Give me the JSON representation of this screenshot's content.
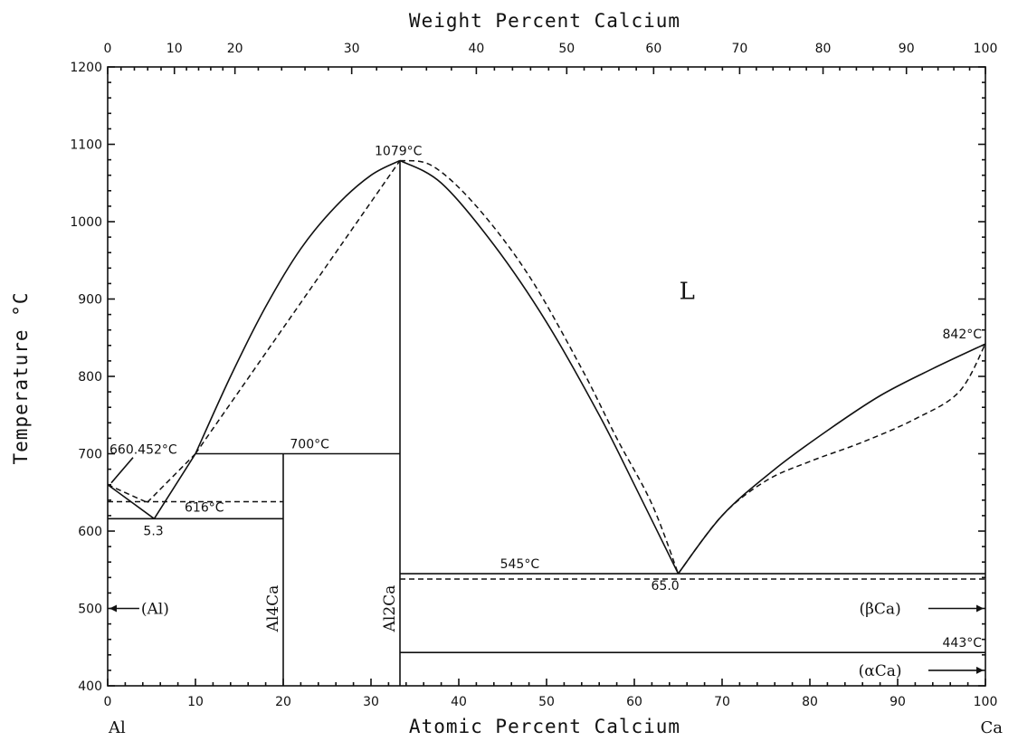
{
  "chart_data": {
    "type": "line",
    "title": "",
    "xlabel": "Atomic Percent Calcium",
    "x2label": "Weight Percent Calcium",
    "ylabel": "Temperature °C",
    "xlim": [
      0,
      100
    ],
    "ylim": [
      400,
      1200
    ],
    "x_ticks": [
      "0",
      "10",
      "20",
      "30",
      "40",
      "50",
      "60",
      "70",
      "80",
      "90",
      "100"
    ],
    "y_ticks": [
      "400",
      "500",
      "600",
      "700",
      "800",
      "900",
      "1000",
      "1100",
      "1200"
    ],
    "x2_ticks": [
      {
        "label": "0",
        "at": 0
      },
      {
        "label": "10",
        "at": 7.6
      },
      {
        "label": "20",
        "at": 14.5
      },
      {
        "label": "30",
        "at": 27.8
      },
      {
        "label": "40",
        "at": 42
      },
      {
        "label": "50",
        "at": 52.3
      },
      {
        "label": "60",
        "at": 62.2
      },
      {
        "label": "70",
        "at": 72
      },
      {
        "label": "80",
        "at": 81.5
      },
      {
        "label": "90",
        "at": 91
      },
      {
        "label": "100",
        "at": 100
      }
    ],
    "left_element": "Al",
    "right_element": "Ca",
    "liquidus_solid": [
      {
        "x": 0,
        "y": 660
      },
      {
        "x": 5.3,
        "y": 616
      },
      {
        "x": 10,
        "y": 700
      },
      {
        "x": 14,
        "y": 800
      },
      {
        "x": 18,
        "y": 890
      },
      {
        "x": 22,
        "y": 965
      },
      {
        "x": 26,
        "y": 1020
      },
      {
        "x": 30,
        "y": 1060
      },
      {
        "x": 33.3,
        "y": 1079
      },
      {
        "x": 38,
        "y": 1050
      },
      {
        "x": 44,
        "y": 970
      },
      {
        "x": 50,
        "y": 870
      },
      {
        "x": 56,
        "y": 750
      },
      {
        "x": 60,
        "y": 660
      },
      {
        "x": 65,
        "y": 545
      },
      {
        "x": 70,
        "y": 620
      },
      {
        "x": 76,
        "y": 680
      },
      {
        "x": 82,
        "y": 730
      },
      {
        "x": 88,
        "y": 775
      },
      {
        "x": 94,
        "y": 810
      },
      {
        "x": 100,
        "y": 842
      }
    ],
    "liquidus_dashed": [
      {
        "x": 0,
        "y": 660
      },
      {
        "x": 4.5,
        "y": 637
      },
      {
        "x": 10,
        "y": 700
      },
      {
        "x": 33.3,
        "y": 1079
      },
      {
        "x": 37,
        "y": 1072
      },
      {
        "x": 42,
        "y": 1020
      },
      {
        "x": 48,
        "y": 930
      },
      {
        "x": 54,
        "y": 810
      },
      {
        "x": 58,
        "y": 720
      },
      {
        "x": 62,
        "y": 635
      },
      {
        "x": 65,
        "y": 545
      },
      {
        "x": 70,
        "y": 620
      },
      {
        "x": 75,
        "y": 665
      },
      {
        "x": 80,
        "y": 690
      },
      {
        "x": 86,
        "y": 715
      },
      {
        "x": 92,
        "y": 745
      },
      {
        "x": 97,
        "y": 780
      },
      {
        "x": 100,
        "y": 842
      }
    ],
    "horizontal_lines": [
      {
        "x1": 0,
        "x2": 20,
        "y": 616,
        "style": "solid"
      },
      {
        "x1": 0,
        "x2": 20,
        "y": 638,
        "style": "dashed"
      },
      {
        "x1": 10,
        "x2": 33.3,
        "y": 700,
        "style": "solid"
      },
      {
        "x1": 33.3,
        "x2": 100,
        "y": 545,
        "style": "solid"
      },
      {
        "x1": 33.3,
        "x2": 100,
        "y": 538,
        "style": "dashed"
      },
      {
        "x1": 33.3,
        "x2": 100,
        "y": 443,
        "style": "solid"
      }
    ],
    "vertical_lines": [
      {
        "x": 20,
        "y1": 400,
        "y2": 700
      },
      {
        "x": 33.3,
        "y1": 400,
        "y2": 1079
      }
    ],
    "annotations": [
      {
        "text": "1079°C",
        "x": 33.3,
        "y": 1079
      },
      {
        "text": "660.452°C",
        "x": 0,
        "y": 660
      },
      {
        "text": "700°C",
        "x": 22,
        "y": 700
      },
      {
        "text": "616°C",
        "x": 10,
        "y": 616
      },
      {
        "text": "5.3",
        "x": 5.3,
        "y": 616
      },
      {
        "text": "545°C",
        "x": 48,
        "y": 545
      },
      {
        "text": "65.0",
        "x": 65,
        "y": 545
      },
      {
        "text": "842°C",
        "x": 100,
        "y": 842
      },
      {
        "text": "443°C",
        "x": 100,
        "y": 443
      }
    ],
    "phase_labels": {
      "liquid": "L",
      "al": "(Al)",
      "al4ca": "Al4Ca",
      "al2ca": "Al2Ca",
      "beta_ca": "(βCa)",
      "alpha_ca": "(αCa)"
    }
  }
}
